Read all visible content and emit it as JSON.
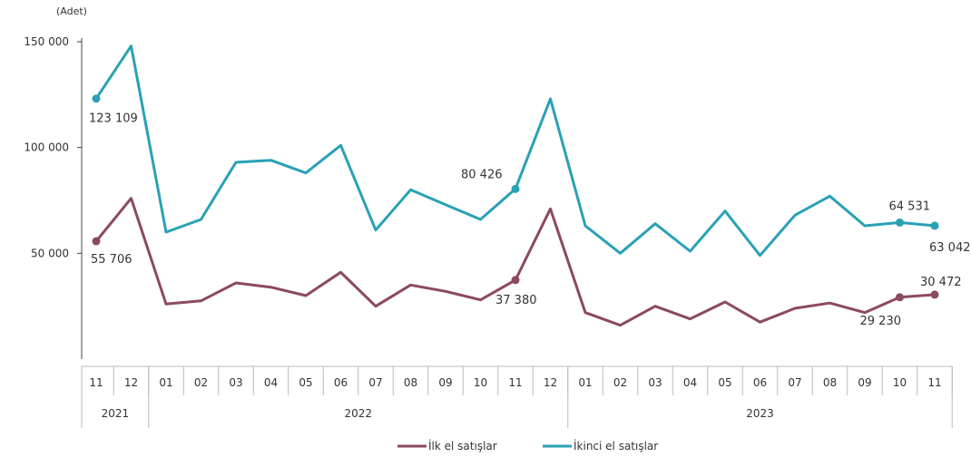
{
  "chart_data": {
    "type": "line",
    "unit_label": "(Adet)",
    "y_ticks": [
      "150 000",
      "100 000",
      "50 000"
    ],
    "y_tick_values": [
      150000,
      100000,
      50000
    ],
    "ylim": [
      0,
      150000
    ],
    "x": [
      "11",
      "12",
      "01",
      "02",
      "03",
      "04",
      "05",
      "06",
      "07",
      "08",
      "09",
      "10",
      "11",
      "12",
      "01",
      "02",
      "03",
      "04",
      "05",
      "06",
      "07",
      "08",
      "09",
      "10",
      "11"
    ],
    "year_labels": [
      {
        "label": "2021",
        "from": 0,
        "to": 1
      },
      {
        "label": "2022",
        "from": 2,
        "to": 13
      },
      {
        "label": "2023",
        "from": 14,
        "to": 24
      }
    ],
    "series": [
      {
        "name": "İlk el satışlar",
        "color": "#8b4a5e",
        "values": [
          55706,
          76000,
          26000,
          27500,
          36000,
          34000,
          30000,
          41000,
          25000,
          35000,
          32000,
          28000,
          37380,
          71000,
          22000,
          16000,
          25000,
          19000,
          27000,
          17500,
          24000,
          26500,
          22000,
          29230,
          30472
        ]
      },
      {
        "name": "İkinci el satışlar",
        "color": "#2aa1b5",
        "values": [
          123109,
          148000,
          60000,
          66000,
          93000,
          94000,
          88000,
          101000,
          61000,
          80000,
          73000,
          66000,
          80426,
          123000,
          63000,
          50000,
          64000,
          51000,
          70000,
          49000,
          68000,
          77000,
          63000,
          64531,
          63042
        ]
      }
    ],
    "annotations": [
      {
        "series": 1,
        "index": 0,
        "text": "123 109"
      },
      {
        "series": 0,
        "index": 0,
        "text": "55 706"
      },
      {
        "series": 1,
        "index": 12,
        "text": "80 426"
      },
      {
        "series": 0,
        "index": 12,
        "text": "37 380"
      },
      {
        "series": 1,
        "index": 23,
        "text": "64 531"
      },
      {
        "series": 1,
        "index": 24,
        "text": "63 042"
      },
      {
        "series": 0,
        "index": 23,
        "text": "29 230"
      },
      {
        "series": 0,
        "index": 24,
        "text": "30 472"
      }
    ],
    "legend": [
      "İlk el satışlar",
      "İkinci el satışlar"
    ],
    "legend_position": "bottom-center",
    "grid": false
  }
}
